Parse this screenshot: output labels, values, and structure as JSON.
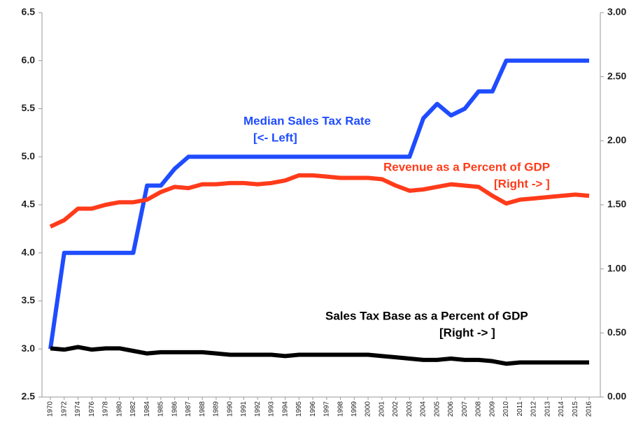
{
  "chart_data": {
    "type": "line",
    "categories": [
      "1970",
      "1972",
      "1974",
      "1976",
      "1978",
      "1980",
      "1982",
      "1984",
      "1985",
      "1986",
      "1987",
      "1988",
      "1989",
      "1990",
      "1991",
      "1992",
      "1993",
      "1994",
      "1995",
      "1996",
      "1997",
      "1998",
      "1999",
      "2000",
      "2001",
      "2002",
      "2003",
      "2004",
      "2005",
      "2006",
      "2007",
      "2008",
      "2009",
      "2010",
      "2011",
      "2012",
      "2013",
      "2014",
      "2015",
      "2016"
    ],
    "series": [
      {
        "name": "Median Sales Tax Rate",
        "color": "#1f4cff",
        "axis": "y",
        "values": [
          3.0,
          4.0,
          4.0,
          4.0,
          4.0,
          4.0,
          4.0,
          4.7,
          4.7,
          4.875,
          5.0,
          5.0,
          5.0,
          5.0,
          5.0,
          5.0,
          5.0,
          5.0,
          5.0,
          5.0,
          5.0,
          5.0,
          5.0,
          5.0,
          5.0,
          5.0,
          5.0,
          5.4,
          5.55,
          5.43,
          5.5,
          5.68,
          5.68,
          6.0,
          6.0,
          6.0,
          6.0,
          6.0,
          6.0,
          6.0
        ]
      },
      {
        "name": "Revenue as a Percent of GDP",
        "color": "#ff3b1a",
        "axis": "y2",
        "values": [
          1.33,
          1.38,
          1.47,
          1.47,
          1.5,
          1.52,
          1.52,
          1.54,
          1.6,
          1.64,
          1.63,
          1.66,
          1.66,
          1.67,
          1.67,
          1.66,
          1.67,
          1.69,
          1.73,
          1.73,
          1.72,
          1.71,
          1.71,
          1.71,
          1.7,
          1.65,
          1.61,
          1.62,
          1.64,
          1.66,
          1.65,
          1.64,
          1.57,
          1.51,
          1.54,
          1.55,
          1.56,
          1.57,
          1.58,
          1.57
        ]
      },
      {
        "name": "Sales Tax Base as a Percent of GDP",
        "color": "#000000",
        "axis": "y2",
        "values": [
          0.38,
          0.37,
          0.39,
          0.37,
          0.38,
          0.38,
          0.36,
          0.34,
          0.35,
          0.35,
          0.35,
          0.35,
          0.34,
          0.33,
          0.33,
          0.33,
          0.33,
          0.32,
          0.33,
          0.33,
          0.33,
          0.33,
          0.33,
          0.33,
          0.32,
          0.31,
          0.3,
          0.29,
          0.29,
          0.3,
          0.29,
          0.29,
          0.28,
          0.26,
          0.27,
          0.27,
          0.27,
          0.27,
          0.27,
          0.27
        ]
      }
    ],
    "annotations": [
      "[<- Left]",
      "[Right -> ]",
      "[Right -> ]"
    ],
    "ylim": [
      2.5,
      6.5
    ],
    "yticks": [
      {
        "value": 2.5,
        "label": "2.5"
      },
      {
        "value": 3,
        "label": "3.0"
      },
      {
        "value": 3.5,
        "label": "3.5"
      },
      {
        "value": 4,
        "label": "4.0"
      },
      {
        "value": 4.5,
        "label": "4.5"
      },
      {
        "value": 5,
        "label": "5.0"
      },
      {
        "value": 5.5,
        "label": "5.5"
      },
      {
        "value": 6,
        "label": "6.0"
      },
      {
        "value": 6.5,
        "label": "6.5"
      }
    ],
    "y2lim": [
      0,
      3
    ],
    "y2ticks": [
      {
        "value": 0,
        "label": "0.00"
      },
      {
        "value": 0.5,
        "label": "0.50"
      },
      {
        "value": 1,
        "label": "1.00"
      },
      {
        "value": 1.5,
        "label": "1.50"
      },
      {
        "value": 2,
        "label": "2.00"
      },
      {
        "value": 2.5,
        "label": "2.50"
      },
      {
        "value": 3,
        "label": "3.00"
      }
    ],
    "grid": false
  }
}
